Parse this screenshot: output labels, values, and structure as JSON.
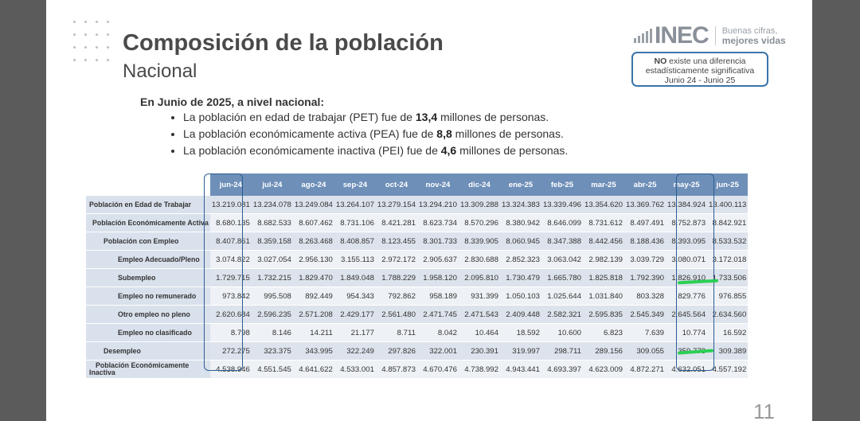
{
  "title": "Composición de la población",
  "subtitle": "Nacional",
  "logo": {
    "name": "INEC",
    "slogan_line1": "Buenas cifras,",
    "slogan_line2": "mejores vidas"
  },
  "note": {
    "bold": "NO",
    "line1_rest": " existe una diferencia",
    "line2": "estadísticamente significativa",
    "line3": "Junio 24 - Junio 25"
  },
  "summary": {
    "lead": "En Junio de 2025, a nivel nacional:",
    "bullets": [
      {
        "pre": "La población en edad de trabajar (PET) fue de ",
        "value": "13,4",
        "post": " millones de personas."
      },
      {
        "pre": "La población económicamente activa (PEA) fue de ",
        "value": "8,8",
        "post": " millones de personas."
      },
      {
        "pre": "La población económicamente inactiva (PEI) fue de ",
        "value": "4,6",
        "post": " millones de personas."
      }
    ]
  },
  "table": {
    "columns": [
      "jun-24",
      "jul-24",
      "ago-24",
      "sep-24",
      "oct-24",
      "nov-24",
      "dic-24",
      "ene-25",
      "feb-25",
      "mar-25",
      "abr-25",
      "may-25",
      "jun-25"
    ],
    "rows": [
      {
        "label": "Población en Edad de Trabajar",
        "indent": 0,
        "values": [
          "13.219.081",
          "13.234.078",
          "13.249.084",
          "13.264.107",
          "13.279.154",
          "13.294.210",
          "13.309.288",
          "13.324.383",
          "13.339.496",
          "13.354.620",
          "13.369.762",
          "13.384.924",
          "13.400.113"
        ]
      },
      {
        "label": "Población Económicamente Activa",
        "indent": 1,
        "values": [
          "8.680.135",
          "8.682.533",
          "8.607.462",
          "8.731.106",
          "8.421.281",
          "8.623.734",
          "8.570.296",
          "8.380.942",
          "8.646.099",
          "8.731.612",
          "8.497.491",
          "8.752.873",
          "8.842.921"
        ]
      },
      {
        "label": "Población con Empleo",
        "indent": 2,
        "values": [
          "8.407.861",
          "8.359.158",
          "8.263.468",
          "8.408.857",
          "8.123.455",
          "8.301.733",
          "8.339.905",
          "8.060.945",
          "8.347.388",
          "8.442.456",
          "8.188.436",
          "8.393.095",
          "8.533.532"
        ]
      },
      {
        "label": "Empleo Adecuado/Pleno",
        "indent": 3,
        "values": [
          "3.074.822",
          "3.027.054",
          "2.956.130",
          "3.155.113",
          "2.972.172",
          "2.905.637",
          "2.830.688",
          "2.852.323",
          "3.063.042",
          "2.982.139",
          "3.039.729",
          "3.080.071",
          "3.172.018"
        ]
      },
      {
        "label": "Subempleo",
        "indent": 3,
        "values": [
          "1.729.715",
          "1.732.215",
          "1.829.470",
          "1.849.048",
          "1.788.229",
          "1.958.120",
          "2.095.810",
          "1.730.479",
          "1.665.780",
          "1.825.818",
          "1.792.390",
          "1.826.910",
          "1.733.506"
        ]
      },
      {
        "label": "Empleo no remunerado",
        "indent": 3,
        "values": [
          "973.842",
          "995.508",
          "892.449",
          "954.343",
          "792.862",
          "958.189",
          "931.399",
          "1.050.103",
          "1.025.644",
          "1.031.840",
          "803.328",
          "829.776",
          "976.855"
        ]
      },
      {
        "label": "Otro empleo no pleno",
        "indent": 3,
        "values": [
          "2.620.684",
          "2.596.235",
          "2.571.208",
          "2.429.177",
          "2.561.480",
          "2.471.745",
          "2.471.543",
          "2.409.448",
          "2.582.321",
          "2.595.835",
          "2.545.349",
          "2.645.564",
          "2.634.560"
        ]
      },
      {
        "label": "Empleo no clasificado",
        "indent": 3,
        "values": [
          "8.798",
          "8.146",
          "14.211",
          "21.177",
          "8.711",
          "8.042",
          "10.464",
          "18.592",
          "10.600",
          "6.823",
          "7.639",
          "10.774",
          "16.592"
        ]
      },
      {
        "label": "Desempleo",
        "indent": 2,
        "values": [
          "272.275",
          "323.375",
          "343.995",
          "322.249",
          "297.826",
          "322.001",
          "230.391",
          "319.997",
          "298.711",
          "289.156",
          "309.055",
          "359.778",
          "309.389"
        ]
      },
      {
        "label_line1": "Población Económicamente",
        "label_line2": "Inactiva",
        "indent": 0,
        "values": [
          "4.538.946",
          "4.551.545",
          "4.641.622",
          "4.533.001",
          "4.857.873",
          "4.670.476",
          "4.738.992",
          "4.943.441",
          "4.693.397",
          "4.623.009",
          "4.872.271",
          "4.632.051",
          "4.557.192"
        ]
      }
    ]
  },
  "page_number": "11",
  "colors": {
    "header_blue": "#6e8fb8",
    "highlight_border": "#2d5d92",
    "marker_green": "#2ccf55"
  }
}
